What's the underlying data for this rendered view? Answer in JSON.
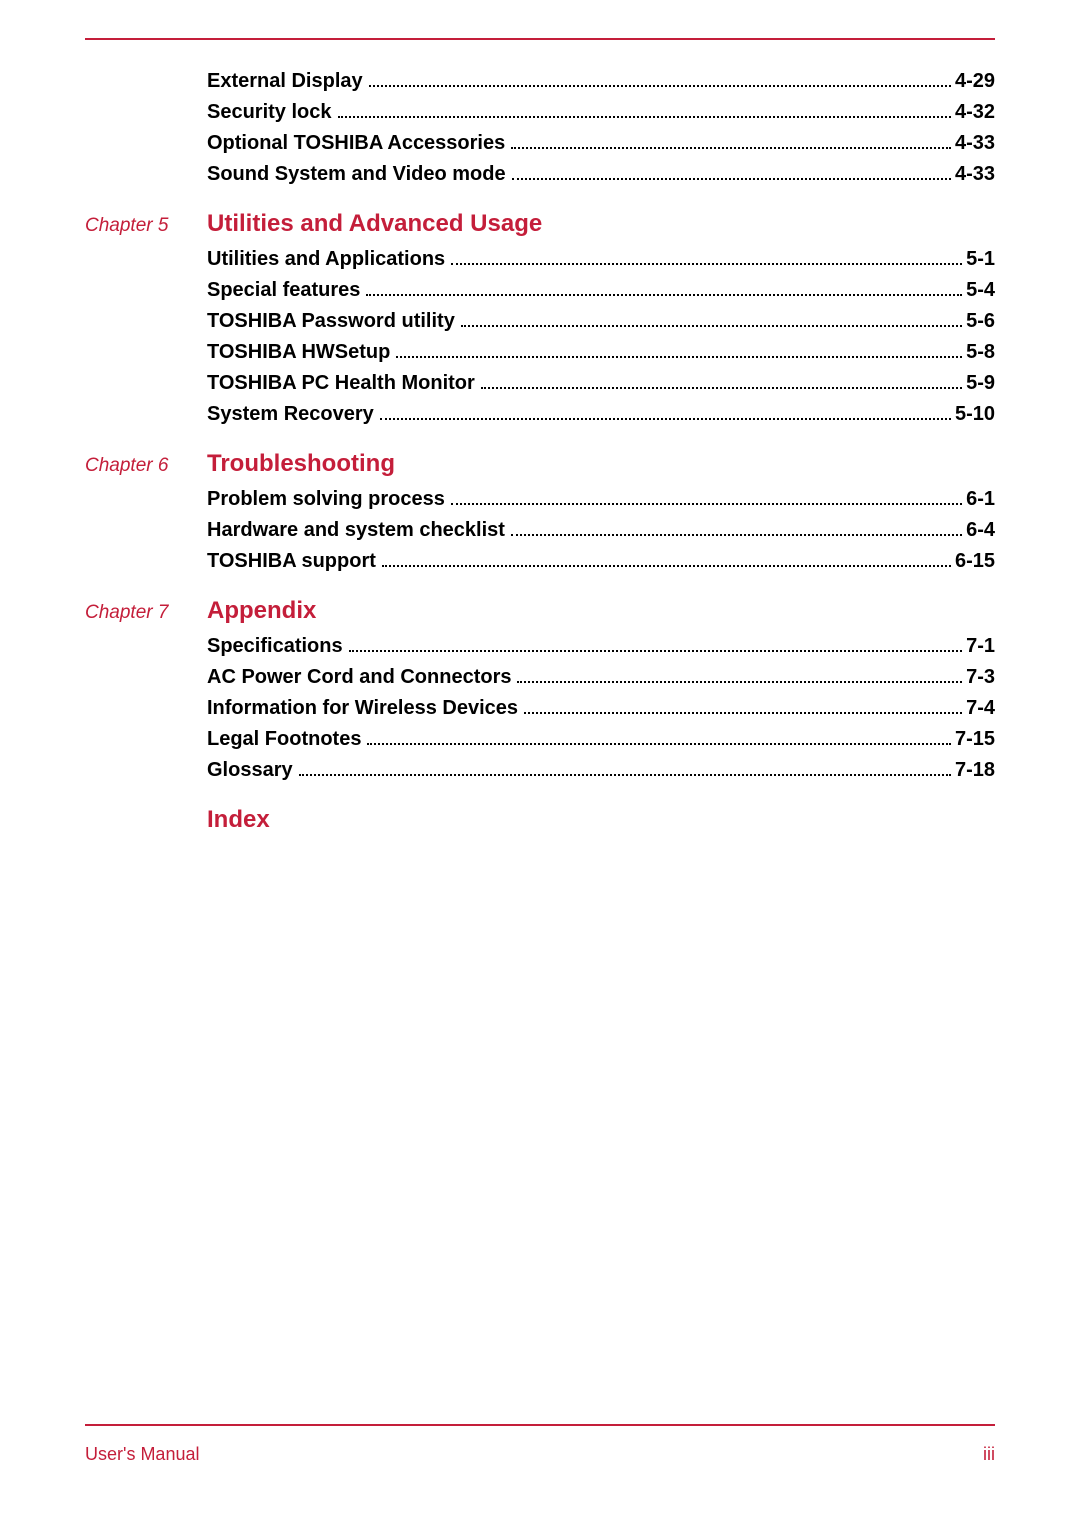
{
  "colors": {
    "accent": "#c41e3a",
    "text": "#000000",
    "background": "#ffffff"
  },
  "typography": {
    "entry_fontsize": 20,
    "chapter_title_fontsize": 24,
    "chapter_label_fontsize": 19,
    "footer_fontsize": 18,
    "entry_weight": "bold"
  },
  "top_entries": [
    {
      "label": "External Display",
      "page": "4-29"
    },
    {
      "label": "Security lock",
      "page": "4-32"
    },
    {
      "label": "Optional TOSHIBA Accessories",
      "page": "4-33"
    },
    {
      "label": "Sound System and Video mode",
      "page": "4-33"
    }
  ],
  "chapters": [
    {
      "label": "Chapter 5",
      "title": "Utilities and Advanced Usage",
      "entries": [
        {
          "label": "Utilities and Applications",
          "page": "5-1"
        },
        {
          "label": "Special features",
          "page": "5-4"
        },
        {
          "label": "TOSHIBA Password utility",
          "page": "5-6"
        },
        {
          "label": "TOSHIBA HWSetup",
          "page": "5-8"
        },
        {
          "label": "TOSHIBA PC Health Monitor",
          "page": "5-9"
        },
        {
          "label": "System Recovery",
          "page": "5-10"
        }
      ]
    },
    {
      "label": "Chapter 6",
      "title": "Troubleshooting",
      "entries": [
        {
          "label": "Problem solving process",
          "page": "6-1"
        },
        {
          "label": "Hardware and system checklist",
          "page": "6-4"
        },
        {
          "label": "TOSHIBA support",
          "page": "6-15"
        }
      ]
    },
    {
      "label": "Chapter 7",
      "title": "Appendix",
      "entries": [
        {
          "label": "Specifications",
          "page": "7-1"
        },
        {
          "label": "AC Power Cord and Connectors",
          "page": "7-3"
        },
        {
          "label": "Information for Wireless Devices",
          "page": "7-4"
        },
        {
          "label": "Legal Footnotes",
          "page": "7-15"
        },
        {
          "label": "Glossary",
          "page": "7-18"
        }
      ]
    }
  ],
  "index_title": "Index",
  "footer": {
    "left": "User's Manual",
    "right": "iii"
  }
}
